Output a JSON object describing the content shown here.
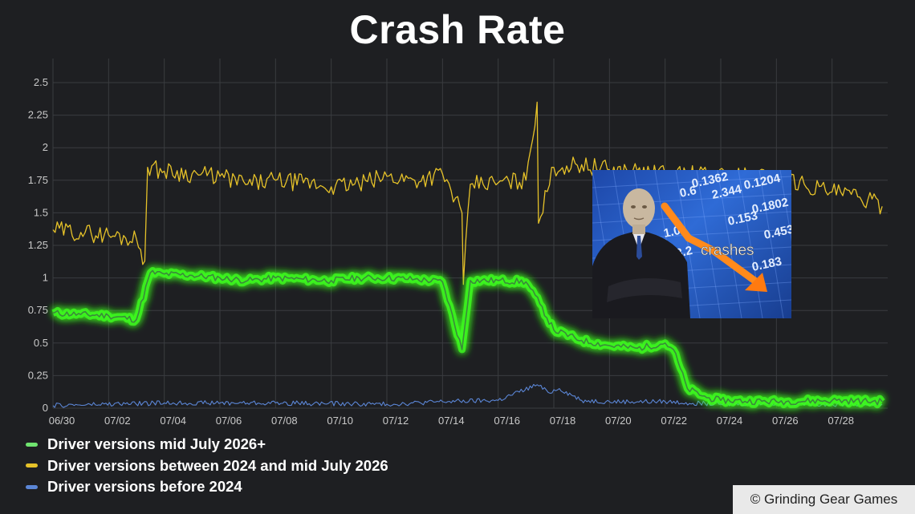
{
  "title": "Crash Rate",
  "credit": "© Grinding Gear Games",
  "meme": {
    "caption": "crashes",
    "board_numbers": [
      "2.344",
      "0.1204",
      "0.1802",
      "0.153",
      "0.6",
      "0.453",
      "1.0",
      "0.183",
      "0.1362",
      "8.2"
    ]
  },
  "colors": {
    "background": "#1e1f22",
    "grid": "#3a3c40",
    "tick_text": "#c9c9c9",
    "green": "#6fe36f",
    "green_glow": "#3dff1f",
    "yellow": "#e6c229",
    "blue": "#5b86d6"
  },
  "chart_data": {
    "type": "line",
    "title": "Crash Rate",
    "xlabel": "",
    "ylabel": "",
    "x_domain": [
      "06/30",
      "07/30"
    ],
    "x_ticks": [
      "06/30",
      "07/02",
      "07/04",
      "07/06",
      "07/08",
      "07/10",
      "07/12",
      "07/14",
      "07/16",
      "07/18",
      "07/20",
      "07/22",
      "07/24",
      "07/26",
      "07/28"
    ],
    "y_ticks": [
      "0",
      "0.25",
      "0.5",
      "0.75",
      "1",
      "1.25",
      "1.5",
      "1.75",
      "2",
      "2.25",
      "2.5"
    ],
    "ylim": [
      0,
      2.5
    ],
    "grid": true,
    "legend_position": "bottom-left",
    "series": [
      {
        "name": "Driver versions mid July 2026+",
        "color": "green",
        "points": [
          [
            "06/30",
            0.73
          ],
          [
            "07/01",
            0.72
          ],
          [
            "07/02",
            0.71
          ],
          [
            "07/03",
            0.68
          ],
          [
            "07/03.5",
            1.04
          ],
          [
            "07/04",
            1.03
          ],
          [
            "07/05",
            1.02
          ],
          [
            "07/06",
            1.0
          ],
          [
            "07/07",
            0.98
          ],
          [
            "07/08",
            1.0
          ],
          [
            "07/09",
            0.99
          ],
          [
            "07/10",
            0.98
          ],
          [
            "07/11",
            1.0
          ],
          [
            "07/12",
            1.0
          ],
          [
            "07/13",
            0.99
          ],
          [
            "07/14",
            0.97
          ],
          [
            "07/14.7",
            0.45
          ],
          [
            "07/15",
            0.98
          ],
          [
            "07/16",
            0.98
          ],
          [
            "07/17",
            0.97
          ],
          [
            "07/17.5",
            0.8
          ],
          [
            "07/18",
            0.6
          ],
          [
            "07/19",
            0.52
          ],
          [
            "07/20",
            0.48
          ],
          [
            "07/21",
            0.46
          ],
          [
            "07/22",
            0.5
          ],
          [
            "07/22.3",
            0.45
          ],
          [
            "07/22.8",
            0.15
          ],
          [
            "07/23.5",
            0.08
          ],
          [
            "07/24",
            0.06
          ],
          [
            "07/26",
            0.05
          ],
          [
            "07/28",
            0.06
          ],
          [
            "07/29.8",
            0.05
          ]
        ]
      },
      {
        "name": "Driver versions between 2024 and mid July 2026",
        "color": "yellow",
        "points": [
          [
            "06/30",
            1.37
          ],
          [
            "07/01",
            1.35
          ],
          [
            "07/02",
            1.33
          ],
          [
            "07/03",
            1.3
          ],
          [
            "07/03.3",
            1.13
          ],
          [
            "07/03.4",
            1.85
          ],
          [
            "07/04",
            1.82
          ],
          [
            "07/05",
            1.8
          ],
          [
            "07/06",
            1.78
          ],
          [
            "07/07",
            1.72
          ],
          [
            "07/08",
            1.75
          ],
          [
            "07/09",
            1.73
          ],
          [
            "07/10",
            1.7
          ],
          [
            "07/11",
            1.72
          ],
          [
            "07/12",
            1.78
          ],
          [
            "07/13",
            1.75
          ],
          [
            "07/14",
            1.8
          ],
          [
            "07/14.7",
            1.5
          ],
          [
            "07/14.75",
            0.95
          ],
          [
            "07/15",
            1.72
          ],
          [
            "07/16",
            1.73
          ],
          [
            "07/17",
            1.75
          ],
          [
            "07/17.4",
            2.35
          ],
          [
            "07/17.45",
            1.42
          ],
          [
            "07/18",
            1.85
          ],
          [
            "07/19",
            1.87
          ],
          [
            "07/20",
            1.83
          ],
          [
            "07/21",
            1.82
          ],
          [
            "07/22",
            1.8
          ],
          [
            "07/26",
            1.78
          ],
          [
            "07/27",
            1.72
          ],
          [
            "07/28",
            1.66
          ],
          [
            "07/29",
            1.62
          ],
          [
            "07/29.8",
            1.55
          ]
        ]
      },
      {
        "name": "Driver versions before 2024",
        "color": "blue",
        "points": [
          [
            "06/30",
            0.02
          ],
          [
            "07/04",
            0.04
          ],
          [
            "07/08",
            0.04
          ],
          [
            "07/12",
            0.03
          ],
          [
            "07/14",
            0.05
          ],
          [
            "07/16",
            0.06
          ],
          [
            "07/17.4",
            0.18
          ],
          [
            "07/17.8",
            0.12
          ],
          [
            "07/18.2",
            0.15
          ],
          [
            "07/19",
            0.06
          ],
          [
            "07/20",
            0.05
          ],
          [
            "07/22",
            0.05
          ],
          [
            "07/24",
            0.03
          ],
          [
            "07/26",
            0.04
          ],
          [
            "07/28",
            0.03
          ],
          [
            "07/29.8",
            0.03
          ]
        ]
      }
    ]
  }
}
